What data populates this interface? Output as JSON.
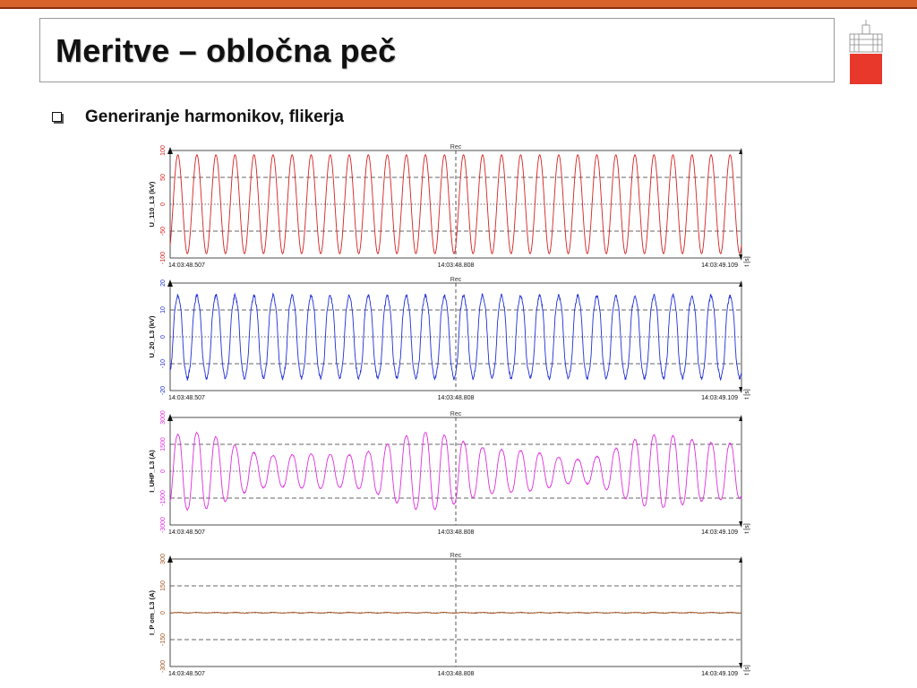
{
  "slide": {
    "title": "Meritve – obločna peč",
    "bullet": "Generiranje harmonikov, flikerja"
  },
  "panels": [
    {
      "id": "u110",
      "ylabel": "U_110_L3 (kV)",
      "color": "#d62020",
      "ticks": [
        "100",
        "50",
        "0",
        "-50",
        "-100"
      ],
      "rec_label": "Rec",
      "time_labels": [
        "14:03:48.507",
        "14:03:48.808",
        "14:03:49.109"
      ],
      "unit": "t [s]"
    },
    {
      "id": "u20",
      "ylabel": "U_20_L3 (kV)",
      "color": "#1e2fd6",
      "ticks": [
        "20",
        "10",
        "0",
        "-10",
        "-20"
      ],
      "rec_label": "Rec",
      "time_labels": [
        "14:03:48.507",
        "14:03:48.808",
        "14:03:49.109"
      ],
      "unit": "t [s]"
    },
    {
      "id": "iuhp",
      "ylabel": "I_UHP_L3 (A)",
      "color": "#e02ee0",
      "ticks": [
        "3000",
        "1500",
        "0",
        "-1500",
        "-3000"
      ],
      "rec_label": "Rec",
      "time_labels": [
        "14:03:48.507",
        "14:03:48.808",
        "14:03:49.109"
      ],
      "unit": "t [s]"
    },
    {
      "id": "ipom",
      "ylabel": "I_P om_L3 (A)",
      "color": "#a0521e",
      "ticks": [
        "300",
        "150",
        "0",
        "-150",
        "-300"
      ],
      "rec_label": "Rec",
      "time_labels": [
        "14:03:48.507",
        "14:03:48.808",
        "14:03:49.109"
      ],
      "unit": "t [s]"
    }
  ],
  "chart_data": [
    {
      "type": "line",
      "ylabel": "U_110_L3 (kV)",
      "x_start": "14:03:48.507",
      "x_mid": "14:03:48.808",
      "x_end": "14:03:49.109",
      "ylim": [
        -100,
        100
      ],
      "series": [
        {
          "values_description_cycles": 30,
          "amplitude": 92,
          "frequency_hz": 50
        }
      ],
      "grid": true
    },
    {
      "type": "line",
      "ylabel": "U_20_L3 (kV)",
      "x_start": "14:03:48.507",
      "x_mid": "14:03:48.808",
      "x_end": "14:03:49.109",
      "ylim": [
        -20,
        20
      ],
      "series": [
        {
          "values_description_cycles": 30,
          "amplitude": 16,
          "frequency_hz": 50
        }
      ],
      "grid": true
    },
    {
      "type": "line",
      "ylabel": "I_UHP_L3 (A)",
      "x_start": "14:03:48.507",
      "x_mid": "14:03:48.808",
      "x_end": "14:03:49.109",
      "ylim": [
        -3000,
        3000
      ],
      "series": [
        {
          "values_description_cycles": 30,
          "amplitude": 2300,
          "frequency_hz": 50
        }
      ],
      "grid": true
    },
    {
      "type": "line",
      "ylabel": "I_P om_L3 (A)",
      "x_start": "14:03:48.507",
      "x_mid": "14:03:48.808",
      "x_end": "14:03:49.109",
      "ylim": [
        -300,
        300
      ],
      "series": [
        {
          "values_description_cycles": 30,
          "amplitude": 2,
          "frequency_hz": 50
        }
      ],
      "grid": true
    }
  ]
}
